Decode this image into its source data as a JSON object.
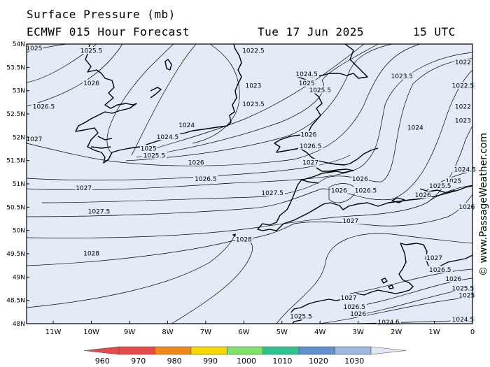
{
  "header": {
    "title": "Surface Pressure (mb)",
    "model": "ECMWF 015 Hour Forecast",
    "date": "Tue 17 Jun 2025",
    "time": "15 UTC"
  },
  "watermark": "© www.PassageWeather.com",
  "axes": {
    "lat_labels": [
      "54N",
      "53.5N",
      "53N",
      "52.5N",
      "52N",
      "51.5N",
      "51N",
      "50.5N",
      "50N",
      "49.5N",
      "49N",
      "48.5N",
      "48N"
    ],
    "lon_labels": [
      "11W",
      "10W",
      "9W",
      "8W",
      "7W",
      "6W",
      "5W",
      "4W",
      "3W",
      "2W",
      "1W",
      "0"
    ]
  },
  "colors": {
    "ocean": "#e3ebf7",
    "land": "#e3ebf7",
    "isobar": "#000000",
    "coast": "#000000"
  },
  "isobar_labels": [
    {
      "text": "1025",
      "lon": -11.5,
      "lat": 53.9
    },
    {
      "text": "1025.5",
      "lon": -10.0,
      "lat": 53.85
    },
    {
      "text": "1022.5",
      "lon": -5.75,
      "lat": 53.85
    },
    {
      "text": "1022",
      "lon": -0.25,
      "lat": 53.6
    },
    {
      "text": "1026",
      "lon": -10.0,
      "lat": 53.15
    },
    {
      "text": "1024.5",
      "lon": -4.35,
      "lat": 53.35
    },
    {
      "text": "1025",
      "lon": -4.35,
      "lat": 53.15
    },
    {
      "text": "1025.5",
      "lon": -4.0,
      "lat": 53.0
    },
    {
      "text": "1023",
      "lon": -5.75,
      "lat": 53.1
    },
    {
      "text": "1023.5",
      "lon": -1.85,
      "lat": 53.3
    },
    {
      "text": "1022.5",
      "lon": -0.25,
      "lat": 53.1
    },
    {
      "text": "1023.5",
      "lon": -5.75,
      "lat": 52.7
    },
    {
      "text": "1026.5",
      "lon": -11.25,
      "lat": 52.65
    },
    {
      "text": "1022",
      "lon": -0.25,
      "lat": 52.65
    },
    {
      "text": "1024",
      "lon": -7.5,
      "lat": 52.25
    },
    {
      "text": "1024",
      "lon": -1.5,
      "lat": 52.2
    },
    {
      "text": "1023",
      "lon": -0.25,
      "lat": 52.35
    },
    {
      "text": "1024.5",
      "lon": -8.0,
      "lat": 52.0
    },
    {
      "text": "1027",
      "lon": -11.5,
      "lat": 51.95
    },
    {
      "text": "1025",
      "lon": -8.5,
      "lat": 51.75
    },
    {
      "text": "1025.5",
      "lon": -8.35,
      "lat": 51.6
    },
    {
      "text": "1026",
      "lon": -4.3,
      "lat": 52.05
    },
    {
      "text": "1026.5",
      "lon": -4.25,
      "lat": 51.8
    },
    {
      "text": "1026",
      "lon": -7.25,
      "lat": 51.45
    },
    {
      "text": "1027",
      "lon": -4.25,
      "lat": 51.45
    },
    {
      "text": "1024.5",
      "lon": -0.2,
      "lat": 51.3
    },
    {
      "text": "1026",
      "lon": -2.95,
      "lat": 51.1
    },
    {
      "text": "1026.5",
      "lon": -7.0,
      "lat": 51.1
    },
    {
      "text": "1025",
      "lon": -0.5,
      "lat": 51.05
    },
    {
      "text": "1025.5",
      "lon": -0.85,
      "lat": 50.95
    },
    {
      "text": "1027",
      "lon": -10.2,
      "lat": 50.9
    },
    {
      "text": "1026",
      "lon": -3.5,
      "lat": 50.85
    },
    {
      "text": "1026.5",
      "lon": -2.8,
      "lat": 50.85
    },
    {
      "text": "1027.5",
      "lon": -5.25,
      "lat": 50.8
    },
    {
      "text": "1026",
      "lon": -1.3,
      "lat": 50.75
    },
    {
      "text": "1026",
      "lon": -0.15,
      "lat": 50.5
    },
    {
      "text": "1027.5",
      "lon": -9.8,
      "lat": 50.4
    },
    {
      "text": "1027",
      "lon": -3.2,
      "lat": 50.2
    },
    {
      "text": "1028",
      "lon": -6.0,
      "lat": 49.8
    },
    {
      "text": "1028",
      "lon": -10.0,
      "lat": 49.5
    },
    {
      "text": "1027",
      "lon": -1.0,
      "lat": 49.4
    },
    {
      "text": "1026.5",
      "lon": -0.85,
      "lat": 49.15
    },
    {
      "text": "1026",
      "lon": -0.5,
      "lat": 48.95
    },
    {
      "text": "1025.5",
      "lon": -0.25,
      "lat": 48.75
    },
    {
      "text": "1025",
      "lon": -0.15,
      "lat": 48.6
    },
    {
      "text": "1027",
      "lon": -3.25,
      "lat": 48.55
    },
    {
      "text": "1026.5",
      "lon": -3.1,
      "lat": 48.35
    },
    {
      "text": "1026",
      "lon": -3.0,
      "lat": 48.2
    },
    {
      "text": "1025.5",
      "lon": -4.5,
      "lat": 48.15
    },
    {
      "text": "1024.5",
      "lon": -2.2,
      "lat": 48.02
    },
    {
      "text": "1024.5",
      "lon": -0.25,
      "lat": 48.08
    }
  ],
  "colorbar": {
    "labels": [
      "960",
      "970",
      "980",
      "990",
      "1000",
      "1010",
      "1020",
      "1030"
    ],
    "colors": [
      "#e64b4b",
      "#ef8a1a",
      "#f5d800",
      "#7fe06a",
      "#2fc28f",
      "#5f8fd0",
      "#9fb8e0",
      "#dfe6f2"
    ]
  }
}
